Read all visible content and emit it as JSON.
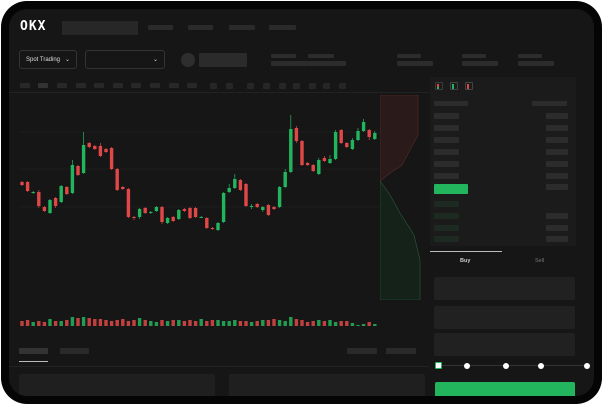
{
  "header": {
    "logo": "OKX"
  },
  "toolbar": {
    "market_selector": "Spot Trading",
    "chevron": "⌄"
  },
  "order_form": {
    "tabs": [
      "Buy",
      "Sell"
    ],
    "slider_percent": 0
  },
  "colors": {
    "up": "#22b55e",
    "down": "#e04848",
    "background": "#161616"
  },
  "chart_data": {
    "type": "candlestick",
    "candles": [
      [
        68,
        65,
        69,
        64
      ],
      [
        68,
        59,
        69,
        58
      ],
      [
        57,
        58,
        59,
        56
      ],
      [
        58,
        44,
        60,
        42
      ],
      [
        43,
        39,
        44,
        38
      ],
      [
        37,
        50,
        51,
        36
      ],
      [
        52,
        44,
        53,
        42
      ],
      [
        48,
        64,
        65,
        47
      ],
      [
        63,
        56,
        64,
        55
      ],
      [
        57,
        85,
        90,
        56
      ],
      [
        84,
        75,
        85,
        74
      ],
      [
        77,
        105,
        118,
        76
      ],
      [
        107,
        103,
        108,
        102
      ],
      [
        104,
        101,
        105,
        100
      ],
      [
        104,
        94,
        107,
        93
      ],
      [
        101,
        98,
        102,
        97
      ],
      [
        102,
        81,
        103,
        80
      ],
      [
        81,
        60,
        82,
        59
      ],
      [
        63,
        61,
        64,
        60
      ],
      [
        61,
        33,
        62,
        32
      ],
      [
        33,
        32,
        34,
        30
      ],
      [
        33,
        41,
        42,
        31
      ],
      [
        42,
        37,
        43,
        36
      ],
      [
        38,
        38,
        39,
        36
      ],
      [
        39,
        43,
        44,
        38
      ],
      [
        43,
        28,
        44,
        26
      ],
      [
        27,
        32,
        33,
        26
      ],
      [
        33,
        29,
        34,
        28
      ],
      [
        31,
        40,
        41,
        30
      ],
      [
        41,
        39,
        42,
        38
      ],
      [
        42,
        32,
        43,
        31
      ],
      [
        42,
        33,
        43,
        32
      ],
      [
        33,
        33,
        34,
        32
      ],
      [
        32,
        22,
        33,
        21
      ],
      [
        22,
        21,
        23,
        20
      ],
      [
        20,
        27,
        28,
        19
      ],
      [
        28,
        57,
        58,
        27
      ],
      [
        58,
        62,
        66,
        57
      ],
      [
        62,
        71,
        76,
        61
      ],
      [
        70,
        60,
        71,
        59
      ],
      [
        66,
        44,
        67,
        43
      ],
      [
        43,
        44,
        46,
        41
      ],
      [
        46,
        43,
        47,
        42
      ],
      [
        40,
        43,
        44,
        38
      ],
      [
        45,
        35,
        46,
        34
      ],
      [
        43,
        41,
        44,
        40
      ],
      [
        43,
        63,
        64,
        42
      ],
      [
        63,
        78,
        81,
        62
      ],
      [
        78,
        121,
        135,
        77
      ],
      [
        122,
        109,
        124,
        107
      ],
      [
        109,
        85,
        110,
        84
      ],
      [
        87,
        85,
        88,
        84
      ],
      [
        85,
        79,
        86,
        78
      ],
      [
        76,
        90,
        92,
        75
      ],
      [
        92,
        89,
        94,
        88
      ],
      [
        87,
        91,
        95,
        86
      ],
      [
        91,
        118,
        120,
        90
      ],
      [
        120,
        107,
        121,
        106
      ],
      [
        107,
        103,
        108,
        102
      ],
      [
        101,
        110,
        112,
        100
      ],
      [
        110,
        119,
        122,
        109
      ],
      [
        119,
        128,
        131,
        118
      ],
      [
        120,
        113,
        121,
        110
      ],
      [
        111,
        117,
        119,
        110
      ]
    ],
    "volume": [
      5,
      6,
      4,
      5,
      4,
      7,
      5,
      5,
      6,
      9,
      8,
      9,
      8,
      7,
      7,
      6,
      5,
      6,
      7,
      5,
      6,
      8,
      6,
      5,
      4,
      6,
      5,
      6,
      6,
      5,
      6,
      5,
      7,
      5,
      6,
      6,
      5,
      5,
      6,
      5,
      5,
      4,
      5,
      6,
      6,
      7,
      6,
      5,
      9,
      7,
      6,
      4,
      5,
      6,
      5,
      6,
      4,
      5,
      5,
      3,
      1,
      2,
      4,
      2
    ]
  }
}
